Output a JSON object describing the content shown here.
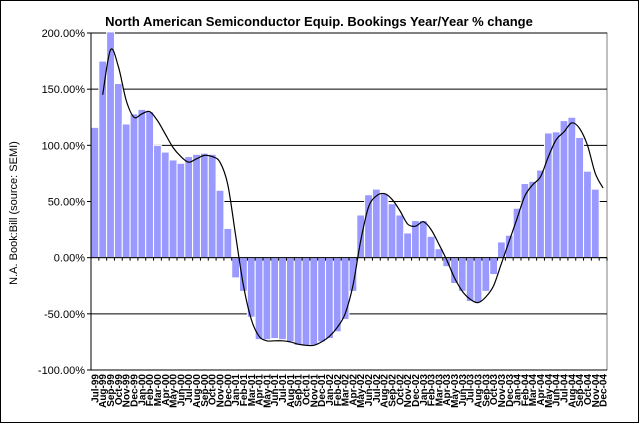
{
  "chart_data": {
    "type": "bar",
    "title": "North American Semiconductor Equip. Bookings Year/Year % change",
    "ylabel": "N.A. Book:Bill  (source: SEMI)",
    "xlabel": "",
    "ylim": [
      -100,
      200
    ],
    "y_ticks": [
      "200.00%",
      "150.00%",
      "100.00%",
      "50.00%",
      "0.00%",
      "-50.00%",
      "-100.00%"
    ],
    "grid": true,
    "legend": "none",
    "colors": {
      "bar_fill": "#9999ff",
      "bar_stroke": "#ffffff",
      "line": "#000000",
      "plot_bg": "#ffffff"
    },
    "categories": [
      "Jul-99",
      "Aug-99",
      "Sep-99",
      "Oct-99",
      "Nov-99",
      "Dec-99",
      "Jan-00",
      "Feb-00",
      "Mar-00",
      "Apr-00",
      "May-00",
      "Jun-00",
      "Jul-00",
      "Aug-00",
      "Sep-00",
      "Oct-00",
      "Nov-00",
      "Dec-00",
      "Jan-01",
      "Feb-01",
      "Mar-01",
      "Apr-01",
      "May-01",
      "Jun-01",
      "Jul-01",
      "Aug-01",
      "Sep-01",
      "Oct-01",
      "Nov-01",
      "Dec-01",
      "Jan-02",
      "Feb-02",
      "Mar-02",
      "Apr-02",
      "May-02",
      "Jun-02",
      "Jul-02",
      "Aug-02",
      "Sep-02",
      "Oct-02",
      "Nov-02",
      "Dec-02",
      "Jan-03",
      "Feb-03",
      "Mar-03",
      "Apr-03",
      "May-03",
      "Jun-03",
      "Jul-03",
      "Aug-03",
      "Sep-03",
      "Oct-03",
      "Nov-03",
      "Dec-03",
      "Jan-04",
      "Feb-04",
      "Mar-04",
      "Apr-04",
      "May-04",
      "Jun-04",
      "Jul-04",
      "Aug-04",
      "Sep-04",
      "Oct-04",
      "Nov-04",
      "Dec-04"
    ],
    "x_tick_labels": [
      "Jul-99",
      "Aug-99",
      "Sep-99",
      "Oct-99",
      "Nov-99",
      "Dec-99",
      "Jan-00",
      "Feb-00",
      "Mar-00",
      "Apr-00",
      "May-00",
      "Jun-00",
      "Jul-00",
      "Aug-00",
      "Sep-00",
      "Oct-00",
      "Nov-00",
      "Dec-00",
      "Jan-01",
      "Feb-01",
      "Mar-01",
      "Apr-01",
      "May-01",
      "Jun-01",
      "Jul-01",
      "Aug-01",
      "Sep-01",
      "Oct-01",
      "Nov-01",
      "Dec-01",
      "Jan-02",
      "Feb-02",
      "Mar-02",
      "Apr-02",
      "May-02",
      "Jun-02",
      "Jul-02",
      "Aug-02",
      "Sep-02",
      "Oct-02",
      "Nov-02",
      "Dec-02",
      "Jan-03",
      "Feb-03",
      "Mar-03",
      "Apr-03",
      "May-03",
      "Jun-03",
      "Jul-03",
      "Aug-03",
      "Sep-03",
      "Oct-03",
      "Nov-03",
      "Dec-03",
      "Jan-04",
      "Feb-04",
      "Mar-04",
      "Apr-04",
      "May-04",
      "Jun-04",
      "Jul-04",
      "Aug-04",
      "Sep-04",
      "Oct-04",
      "Nov-04",
      "Dec-04"
    ],
    "series": [
      {
        "type": "bar",
        "values": [
          116,
          175,
          201,
          155,
          119,
          128,
          132,
          130,
          100,
          94,
          87,
          84,
          90,
          92,
          93,
          92,
          60,
          26,
          -18,
          -30,
          -53,
          -73,
          -73,
          -72,
          -73,
          -75,
          -78,
          -78,
          -78,
          -75,
          -72,
          -66,
          -55,
          -30,
          38,
          56,
          61,
          57,
          48,
          38,
          22,
          33,
          33,
          19,
          8,
          -8,
          -23,
          -30,
          -39,
          -40,
          -30,
          -15,
          14,
          20,
          44,
          66,
          68,
          78,
          111,
          112,
          122,
          125,
          107,
          77,
          61,
          null
        ]
      },
      {
        "type": "line",
        "values": [
          null,
          145,
          185,
          170,
          140,
          125,
          128,
          130,
          122,
          110,
          98,
          90,
          85,
          88,
          91,
          90,
          85,
          65,
          20,
          -25,
          -55,
          -70,
          -74,
          -74,
          -74,
          -75,
          -77,
          -78,
          -78,
          -75,
          -70,
          -62,
          -50,
          -25,
          15,
          45,
          55,
          57,
          52,
          42,
          30,
          28,
          32,
          25,
          12,
          -2,
          -18,
          -30,
          -37,
          -40,
          -35,
          -25,
          -5,
          15,
          35,
          55,
          65,
          72,
          90,
          105,
          112,
          120,
          115,
          100,
          75,
          62
        ]
      }
    ]
  }
}
